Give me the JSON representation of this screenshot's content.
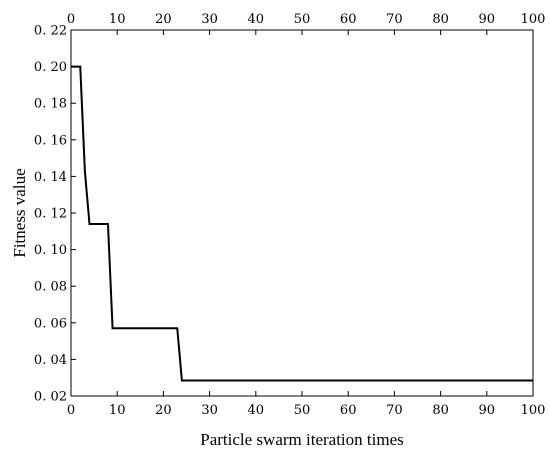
{
  "chart_data": {
    "type": "line",
    "title": "",
    "xlabel": "Particle swarm iteration times",
    "ylabel": "Fitness value",
    "xlim": [
      0,
      100
    ],
    "ylim": [
      0.02,
      0.22
    ],
    "x_ticks": [
      0,
      10,
      20,
      30,
      40,
      50,
      60,
      70,
      80,
      90,
      100
    ],
    "y_ticks": [
      0.02,
      0.04,
      0.06,
      0.08,
      0.1,
      0.12,
      0.14,
      0.16,
      0.18,
      0.2,
      0.22
    ],
    "x_tick_labels": [
      "0",
      "10",
      "20",
      "30",
      "40",
      "50",
      "60",
      "70",
      "80",
      "90",
      "100"
    ],
    "y_tick_labels": [
      "0. 02",
      "0. 04",
      "0. 06",
      "0. 08",
      "0. 10",
      "0. 12",
      "0. 14",
      "0. 16",
      "0. 18",
      "0. 20",
      "0. 22"
    ],
    "top_x_tick_labels": [
      "0",
      "10",
      "20",
      "30",
      "40",
      "50",
      "60",
      "70",
      "80",
      "90",
      "100"
    ],
    "grid": false,
    "series": [
      {
        "x": [
          0,
          2,
          3,
          4,
          8,
          9,
          23,
          24,
          100
        ],
        "values": [
          0.2,
          0.2,
          0.143,
          0.114,
          0.114,
          0.057,
          0.057,
          0.0285,
          0.0285
        ],
        "color": "#000000"
      }
    ]
  }
}
